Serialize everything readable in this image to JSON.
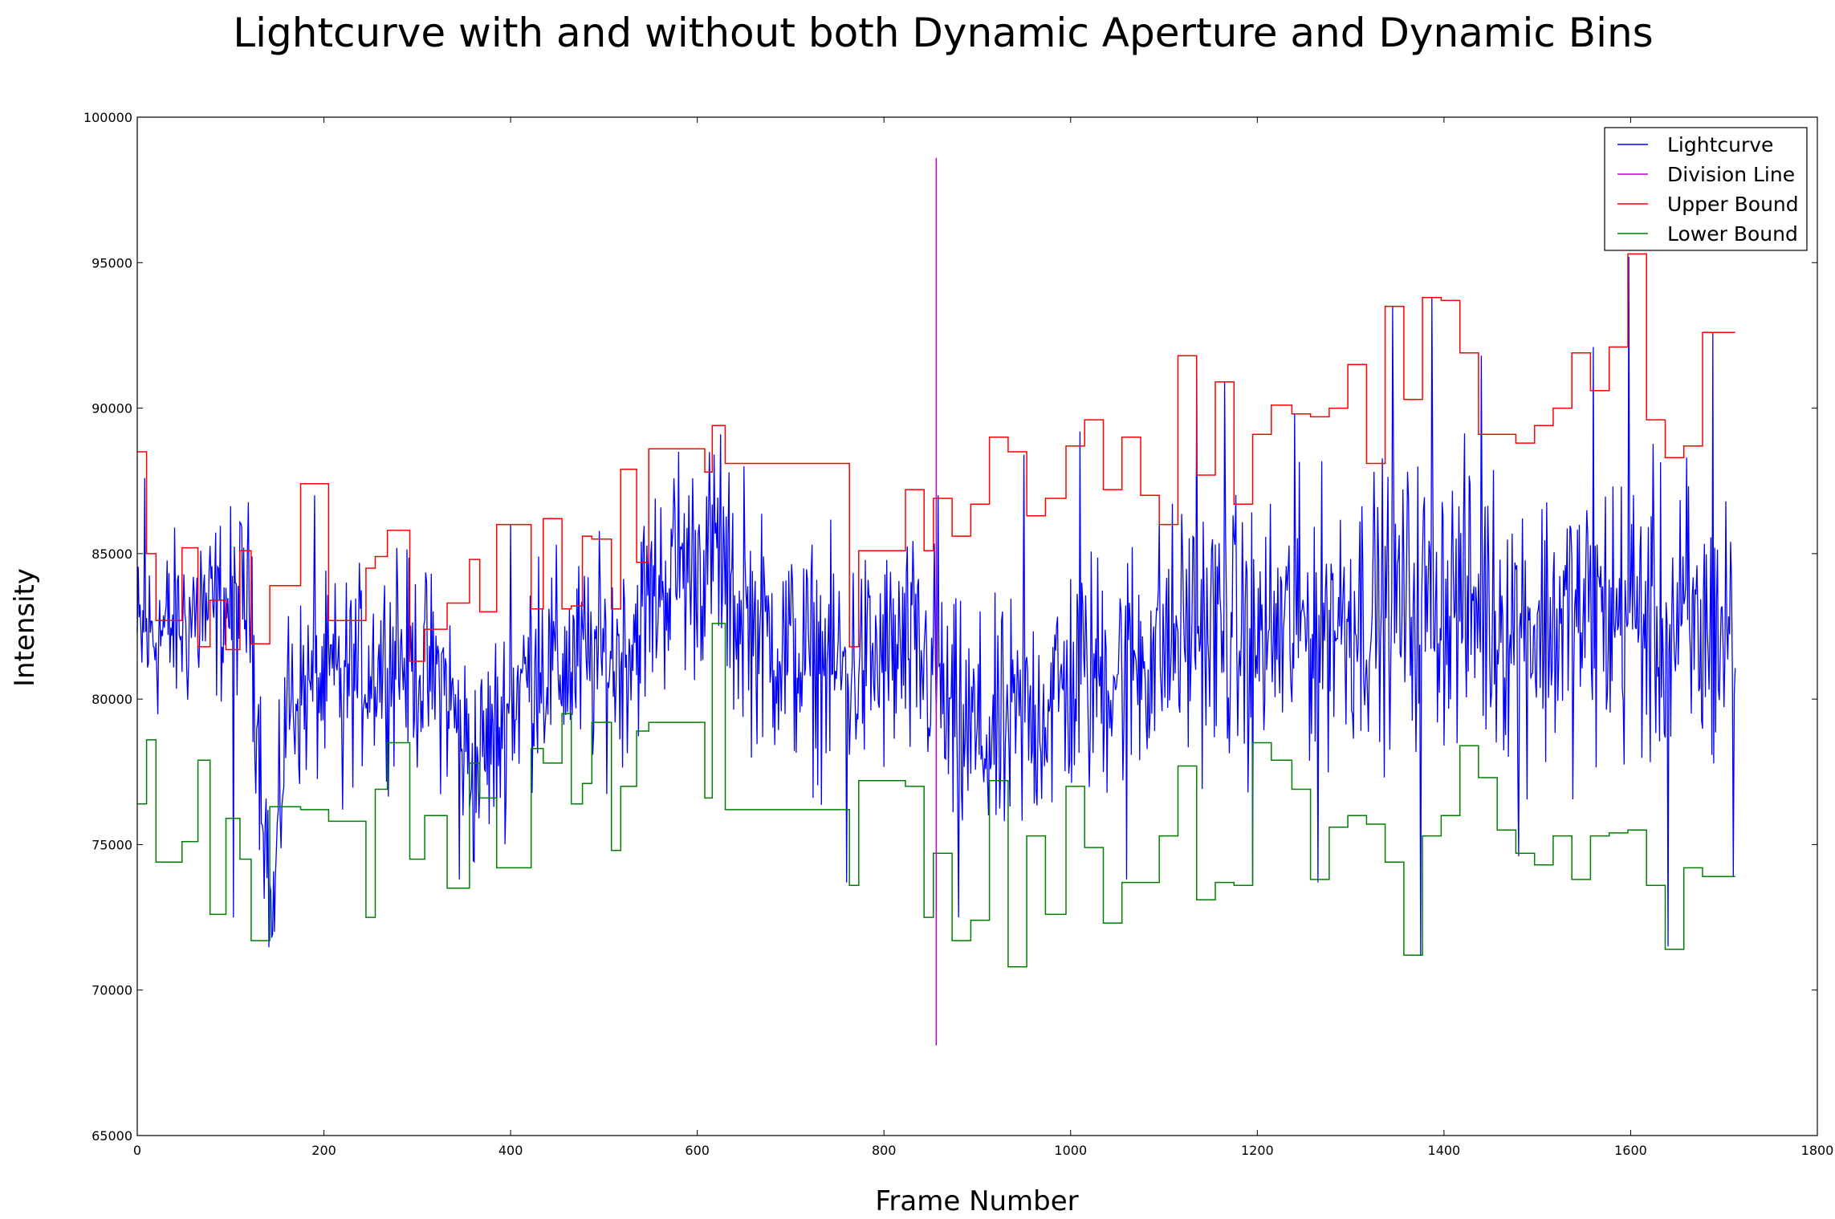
{
  "chart_data": {
    "type": "line",
    "title": "Lightcurve with and without both Dynamic Aperture and Dynamic Bins",
    "xlabel": "Frame Number",
    "ylabel": "Intensity",
    "xlim": [
      0,
      1800
    ],
    "ylim": [
      65000,
      100000
    ],
    "xticks": [
      "0",
      "200",
      "400",
      "600",
      "800",
      "1000",
      "1200",
      "1400",
      "1600",
      "1800"
    ],
    "yticks": [
      "65000",
      "70000",
      "75000",
      "80000",
      "85000",
      "90000",
      "95000",
      "100000"
    ],
    "legend_position": "top-right",
    "series": [
      {
        "name": "Lightcurve",
        "color": "#0000ff",
        "segments": [
          [
            0,
            82000
          ],
          [
            120,
            83500
          ],
          [
            145,
            72000
          ],
          [
            160,
            80000
          ],
          [
            280,
            81500
          ],
          [
            330,
            80500
          ],
          [
            360,
            77500
          ],
          [
            420,
            81000
          ],
          [
            520,
            81500
          ],
          [
            560,
            84000
          ],
          [
            620,
            85000
          ],
          [
            640,
            83000
          ],
          [
            700,
            81500
          ],
          [
            760,
            81000
          ],
          [
            820,
            81500
          ],
          [
            855,
            81000
          ],
          [
            870,
            79000
          ],
          [
            920,
            78500
          ],
          [
            1000,
            80500
          ],
          [
            1080,
            81500
          ],
          [
            1130,
            82500
          ],
          [
            1200,
            82000
          ],
          [
            1300,
            83000
          ],
          [
            1400,
            83500
          ],
          [
            1500,
            82500
          ],
          [
            1600,
            83000
          ],
          [
            1660,
            82000
          ],
          [
            1712,
            82500
          ]
        ],
        "extremes": [
          [
            8,
            87600
          ],
          [
            60,
            84200
          ],
          [
            68,
            85100
          ],
          [
            103,
            72500
          ],
          [
            123,
            84900
          ],
          [
            144,
            71800
          ],
          [
            190,
            87000
          ],
          [
            220,
            76200
          ],
          [
            278,
            85200
          ],
          [
            345,
            73800
          ],
          [
            385,
            75500
          ],
          [
            400,
            86000
          ],
          [
            430,
            84900
          ],
          [
            580,
            88500
          ],
          [
            625,
            89100
          ],
          [
            650,
            88000
          ],
          [
            760,
            73700
          ],
          [
            858,
            87000
          ],
          [
            880,
            72500
          ],
          [
            950,
            88400
          ],
          [
            1010,
            89200
          ],
          [
            1060,
            73800
          ],
          [
            1135,
            91800
          ],
          [
            1165,
            90900
          ],
          [
            1195,
            73700
          ],
          [
            1240,
            89800
          ],
          [
            1265,
            73700
          ],
          [
            1345,
            93500
          ],
          [
            1375,
            71200
          ],
          [
            1387,
            93800
          ],
          [
            1440,
            91800
          ],
          [
            1480,
            74600
          ],
          [
            1560,
            92100
          ],
          [
            1598,
            95200
          ],
          [
            1640,
            71500
          ],
          [
            1660,
            88300
          ],
          [
            1688,
            92600
          ],
          [
            1710,
            73900
          ]
        ]
      },
      {
        "name": "Division Line",
        "color": "#bf00bf",
        "x": [
          856,
          856
        ],
        "y": [
          68100,
          98600
        ]
      },
      {
        "name": "Upper Bound",
        "color": "#ff0000",
        "steps": [
          [
            0,
            88500
          ],
          [
            10,
            85000
          ],
          [
            20,
            82700
          ],
          [
            48,
            85200
          ],
          [
            65,
            81800
          ],
          [
            78,
            83400
          ],
          [
            95,
            81700
          ],
          [
            110,
            85100
          ],
          [
            122,
            81900
          ],
          [
            142,
            83900
          ],
          [
            175,
            87400
          ],
          [
            205,
            82700
          ],
          [
            245,
            84500
          ],
          [
            255,
            84900
          ],
          [
            268,
            85800
          ],
          [
            292,
            81300
          ],
          [
            308,
            82400
          ],
          [
            332,
            83300
          ],
          [
            356,
            84800
          ],
          [
            367,
            83000
          ],
          [
            385,
            86000
          ],
          [
            422,
            83100
          ],
          [
            435,
            86200
          ],
          [
            455,
            83100
          ],
          [
            465,
            83200
          ],
          [
            477,
            85600
          ],
          [
            487,
            85500
          ],
          [
            508,
            83100
          ],
          [
            518,
            87900
          ],
          [
            535,
            84700
          ],
          [
            548,
            88600
          ],
          [
            608,
            87800
          ],
          [
            616,
            89400
          ],
          [
            630,
            88100
          ],
          [
            763,
            81800
          ],
          [
            773,
            85100
          ],
          [
            823,
            87200
          ],
          [
            843,
            85100
          ],
          [
            853,
            86900
          ],
          [
            873,
            85600
          ],
          [
            893,
            86700
          ],
          [
            913,
            89000
          ],
          [
            933,
            88500
          ],
          [
            953,
            86300
          ],
          [
            973,
            86900
          ],
          [
            995,
            88700
          ],
          [
            1015,
            89600
          ],
          [
            1035,
            87200
          ],
          [
            1055,
            89000
          ],
          [
            1075,
            87000
          ],
          [
            1095,
            86000
          ],
          [
            1115,
            91800
          ],
          [
            1135,
            87700
          ],
          [
            1155,
            90900
          ],
          [
            1175,
            86700
          ],
          [
            1195,
            89100
          ],
          [
            1215,
            90100
          ],
          [
            1237,
            89800
          ],
          [
            1257,
            89700
          ],
          [
            1277,
            90000
          ],
          [
            1297,
            91500
          ],
          [
            1317,
            88100
          ],
          [
            1337,
            93500
          ],
          [
            1357,
            90300
          ],
          [
            1377,
            93800
          ],
          [
            1397,
            93700
          ],
          [
            1417,
            91900
          ],
          [
            1437,
            89100
          ],
          [
            1457,
            89100
          ],
          [
            1477,
            88800
          ],
          [
            1497,
            89400
          ],
          [
            1517,
            90000
          ],
          [
            1537,
            91900
          ],
          [
            1557,
            90600
          ],
          [
            1577,
            92100
          ],
          [
            1597,
            95300
          ],
          [
            1617,
            89600
          ],
          [
            1637,
            88300
          ],
          [
            1657,
            88700
          ],
          [
            1677,
            92600
          ],
          [
            1695,
            92600
          ]
        ]
      },
      {
        "name": "Lower Bound",
        "color": "#008000",
        "steps": [
          [
            0,
            76400
          ],
          [
            10,
            78600
          ],
          [
            20,
            74400
          ],
          [
            48,
            75100
          ],
          [
            65,
            77900
          ],
          [
            78,
            72600
          ],
          [
            95,
            75900
          ],
          [
            110,
            74500
          ],
          [
            122,
            71700
          ],
          [
            142,
            76300
          ],
          [
            175,
            76200
          ],
          [
            205,
            75800
          ],
          [
            245,
            72500
          ],
          [
            255,
            76900
          ],
          [
            268,
            78500
          ],
          [
            292,
            74500
          ],
          [
            308,
            76000
          ],
          [
            332,
            73500
          ],
          [
            356,
            77800
          ],
          [
            367,
            76600
          ],
          [
            385,
            74200
          ],
          [
            422,
            78300
          ],
          [
            435,
            77800
          ],
          [
            455,
            79500
          ],
          [
            465,
            76400
          ],
          [
            477,
            77100
          ],
          [
            487,
            79200
          ],
          [
            508,
            74800
          ],
          [
            518,
            77000
          ],
          [
            535,
            78900
          ],
          [
            548,
            79200
          ],
          [
            608,
            76600
          ],
          [
            616,
            82600
          ],
          [
            630,
            76200
          ],
          [
            763,
            73600
          ],
          [
            773,
            77200
          ],
          [
            823,
            77000
          ],
          [
            843,
            72500
          ],
          [
            853,
            74700
          ],
          [
            873,
            71700
          ],
          [
            893,
            72400
          ],
          [
            913,
            77200
          ],
          [
            933,
            70800
          ],
          [
            953,
            75300
          ],
          [
            973,
            72600
          ],
          [
            995,
            77000
          ],
          [
            1015,
            74900
          ],
          [
            1035,
            72300
          ],
          [
            1055,
            73700
          ],
          [
            1075,
            73700
          ],
          [
            1095,
            75300
          ],
          [
            1115,
            77700
          ],
          [
            1135,
            73100
          ],
          [
            1155,
            73700
          ],
          [
            1175,
            73600
          ],
          [
            1195,
            78500
          ],
          [
            1215,
            77900
          ],
          [
            1237,
            76900
          ],
          [
            1257,
            73800
          ],
          [
            1277,
            75600
          ],
          [
            1297,
            76000
          ],
          [
            1317,
            75700
          ],
          [
            1337,
            74400
          ],
          [
            1357,
            71200
          ],
          [
            1377,
            75300
          ],
          [
            1397,
            76000
          ],
          [
            1417,
            78400
          ],
          [
            1437,
            77300
          ],
          [
            1457,
            75500
          ],
          [
            1477,
            74700
          ],
          [
            1497,
            74300
          ],
          [
            1517,
            75300
          ],
          [
            1537,
            73800
          ],
          [
            1557,
            75300
          ],
          [
            1577,
            75400
          ],
          [
            1597,
            75500
          ],
          [
            1617,
            73600
          ],
          [
            1637,
            71400
          ],
          [
            1657,
            74200
          ],
          [
            1677,
            73900
          ],
          [
            1695,
            73900
          ]
        ]
      }
    ]
  }
}
